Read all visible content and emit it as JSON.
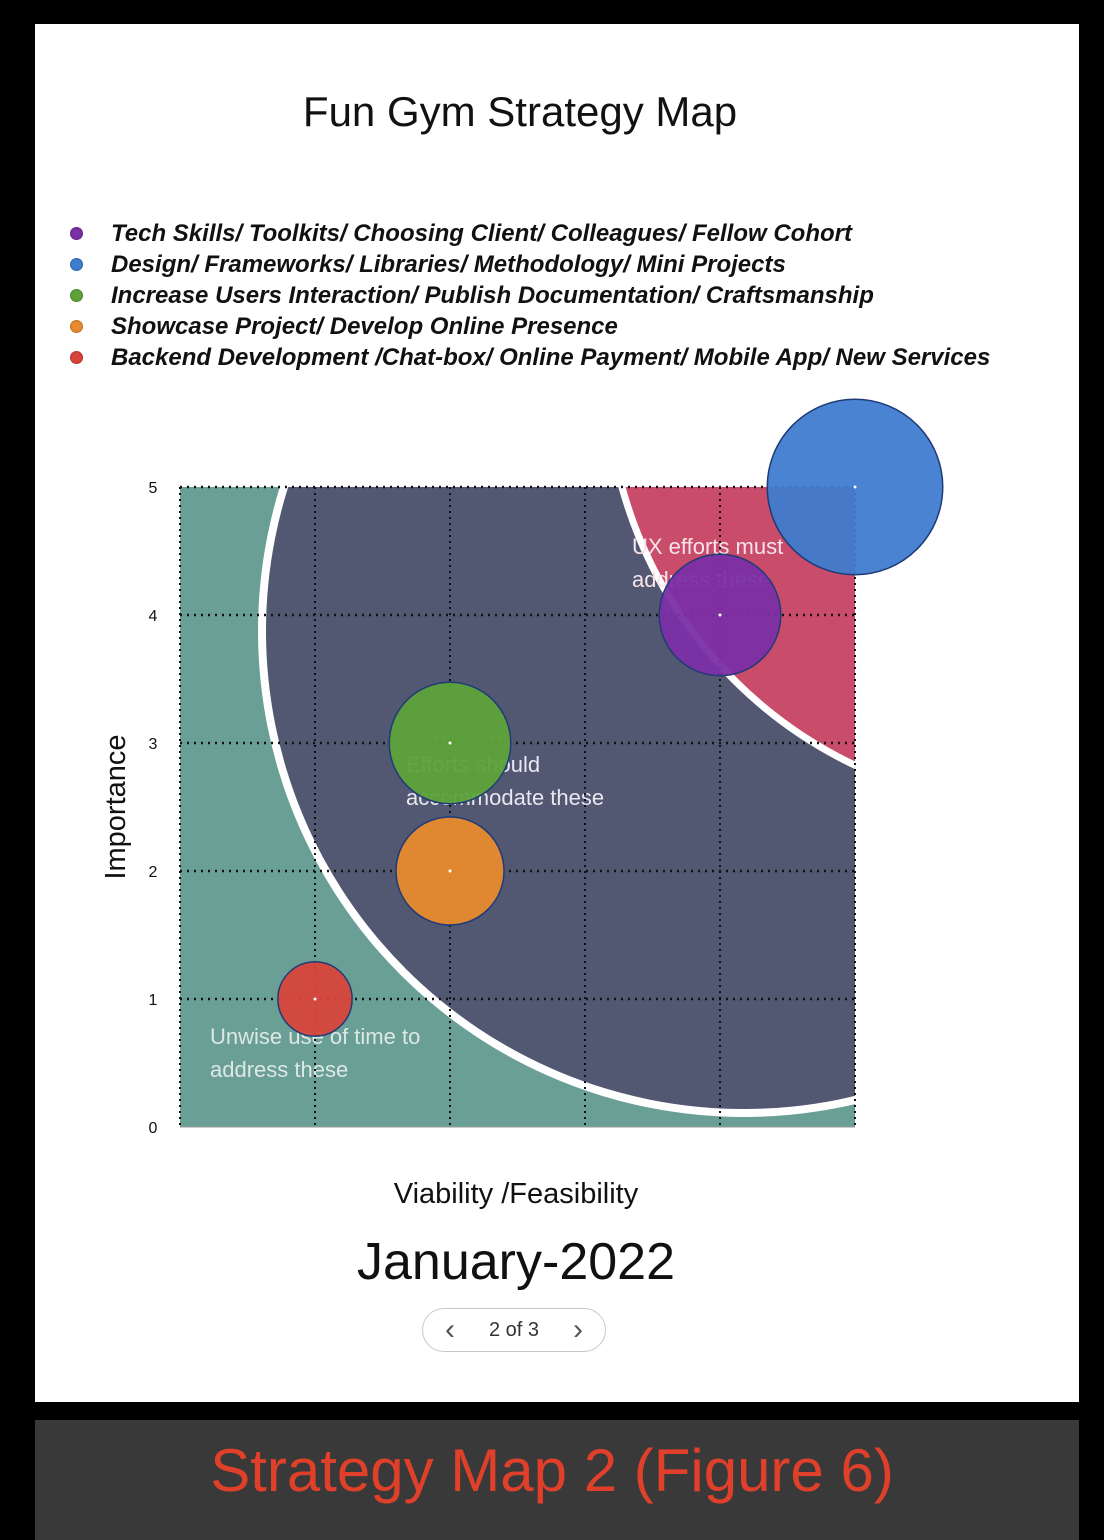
{
  "title": "Fun Gym Strategy Map",
  "legend": [
    {
      "label": "Tech Skills/ Toolkits/ Choosing Client/ Colleagues/ Fellow Cohort",
      "color": "#7b2fa5"
    },
    {
      "label": "Design/ Frameworks/ Libraries/ Methodology/ Mini Projects",
      "color": "#3f7ccf"
    },
    {
      "label": "Increase Users Interaction/ Publish Documentation/ Craftsmanship",
      "color": "#5ea23a"
    },
    {
      "label": "Showcase Project/ Develop Online Presence",
      "color": "#e88a2e"
    },
    {
      "label": "Backend Development /Chat-box/ Online Payment/ Mobile App/ New Services",
      "color": "#d8443b"
    }
  ],
  "zones": {
    "outer": "Unwise use of time to address these",
    "middle": "Efforts should accommodate these",
    "inner": "UX efforts must address these"
  },
  "date_label": "January-2022",
  "pager": {
    "prev": "‹",
    "text": "2 of 3",
    "next": "›"
  },
  "caption": "Strategy Map 2 (Figure 6)",
  "chart_data": {
    "type": "scatter",
    "title": "Fun Gym Strategy Map",
    "xlabel": "Viability /Feasibility",
    "ylabel": "Importance",
    "xlim": [
      0,
      5
    ],
    "ylim": [
      0,
      5
    ],
    "yticks": [
      0,
      1,
      2,
      3,
      4,
      5
    ],
    "grid": true,
    "legend_position": "top",
    "series": [
      {
        "name": "Tech Skills/ Toolkits/ Choosing Client/ Colleagues/ Fellow Cohort",
        "x": 4,
        "y": 4,
        "size": 0.9,
        "color": "#7b2fa5"
      },
      {
        "name": "Design/ Frameworks/ Libraries/ Methodology/ Mini Projects",
        "x": 5,
        "y": 5,
        "size": 1.3,
        "color": "#3f7ccf"
      },
      {
        "name": "Increase Users Interaction/ Publish Documentation/ Craftsmanship",
        "x": 2,
        "y": 3,
        "size": 0.9,
        "color": "#5ea23a"
      },
      {
        "name": "Showcase Project/ Develop Online Presence",
        "x": 2,
        "y": 2,
        "size": 0.8,
        "color": "#e88a2e"
      },
      {
        "name": "Backend Development /Chat-box/ Online Payment/ Mobile App/ New Services",
        "x": 1,
        "y": 1,
        "size": 0.55,
        "color": "#d8443b"
      }
    ]
  }
}
